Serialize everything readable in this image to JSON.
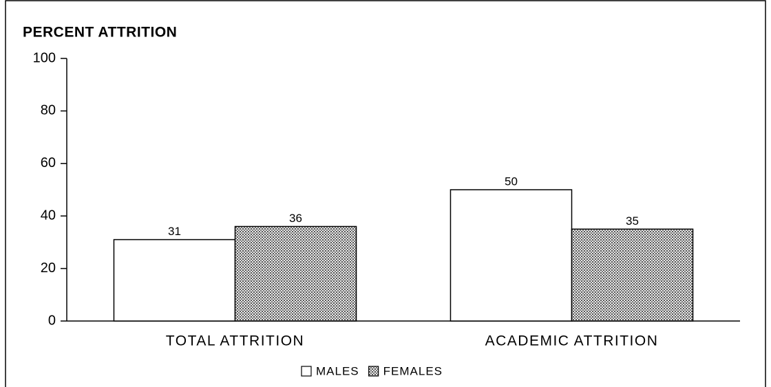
{
  "chart_data": {
    "type": "bar",
    "ylabel": "PERCENT ATTRITION",
    "categories": [
      "TOTAL ATTRITION",
      "ACADEMIC ATTRITION"
    ],
    "series": [
      {
        "name": "MALES",
        "color": "#ffffff",
        "values": [
          31,
          50
        ]
      },
      {
        "name": "FEMALES",
        "color": "#b8b8b8",
        "pattern": "dots",
        "values": [
          36,
          35
        ]
      }
    ],
    "ylim": [
      0,
      100
    ],
    "yticks": [
      0,
      20,
      40,
      60,
      80,
      100
    ],
    "grid": false,
    "legend": "bottom"
  }
}
